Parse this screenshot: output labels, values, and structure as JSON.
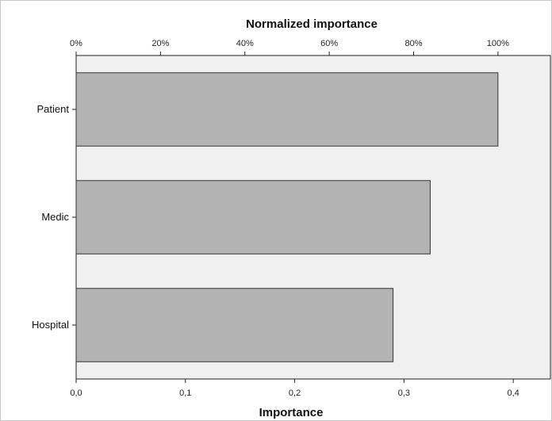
{
  "chart_data": {
    "type": "bar",
    "orientation": "horizontal",
    "categories": [
      "Patient",
      "Medic",
      "Hospital"
    ],
    "values": [
      0.386,
      0.324,
      0.29
    ],
    "top_axis": {
      "label": "Normalized importance",
      "ticks": [
        "0%",
        "20%",
        "40%",
        "60%",
        "80%",
        "100%"
      ],
      "tick_values": [
        0,
        0.2,
        0.4,
        0.6,
        0.8,
        1.0
      ]
    },
    "bottom_axis": {
      "label": "Importance",
      "ticks": [
        "0,0",
        "0,1",
        "0,2",
        "0,3",
        "0,4"
      ],
      "tick_values": [
        0,
        0.1,
        0.2,
        0.3,
        0.4
      ]
    },
    "xlim": [
      0,
      0.434
    ],
    "grid": false,
    "colors": {
      "bar_fill": "#b3b3b3",
      "bar_stroke": "#333333",
      "plot_background": "#f0f0f0",
      "frame": "#c8c8c8"
    }
  }
}
